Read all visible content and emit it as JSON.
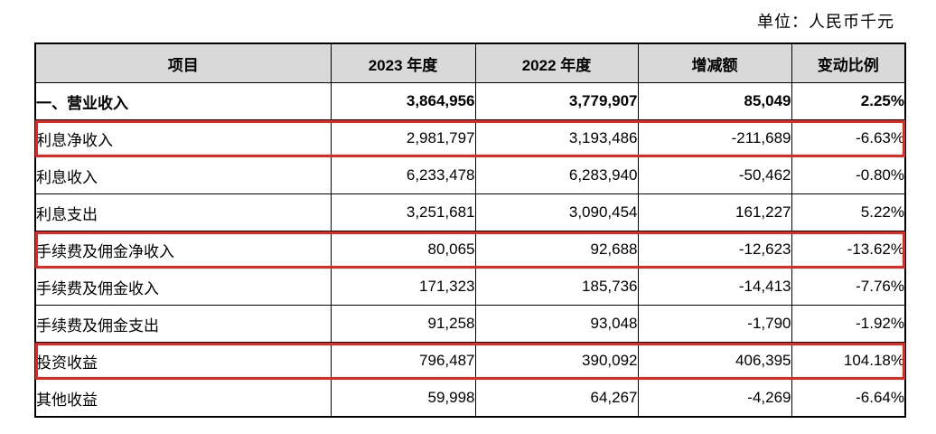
{
  "unit_label": "单位：人民币千元",
  "colors": {
    "header_bg": "#d9d9d9",
    "highlight_border": "#e8261d",
    "table_border": "#000000"
  },
  "table": {
    "headers": {
      "item": "项目",
      "y2023": "2023 年度",
      "y2022": "2022 年度",
      "change": "增减额",
      "pct": "变动比例"
    },
    "rows": [
      {
        "label": "一、营业收入",
        "v2023": "3,864,956",
        "v2022": "3,779,907",
        "change": "85,049",
        "pct": "2.25%",
        "bold": true,
        "indent": 0,
        "highlighted": false
      },
      {
        "label": "利息净收入",
        "v2023": "2,981,797",
        "v2022": "3,193,486",
        "change": "-211,689",
        "pct": "-6.63%",
        "bold": false,
        "indent": 1,
        "highlighted": true
      },
      {
        "label": "利息收入",
        "v2023": "6,233,478",
        "v2022": "6,283,940",
        "change": "-50,462",
        "pct": "-0.80%",
        "bold": false,
        "indent": 2,
        "highlighted": false
      },
      {
        "label": "利息支出",
        "v2023": "3,251,681",
        "v2022": "3,090,454",
        "change": "161,227",
        "pct": "5.22%",
        "bold": false,
        "indent": 2,
        "highlighted": false
      },
      {
        "label": "手续费及佣金净收入",
        "v2023": "80,065",
        "v2022": "92,688",
        "change": "-12,623",
        "pct": "-13.62%",
        "bold": false,
        "indent": 1,
        "highlighted": true
      },
      {
        "label": "手续费及佣金收入",
        "v2023": "171,323",
        "v2022": "185,736",
        "change": "-14,413",
        "pct": "-7.76%",
        "bold": false,
        "indent": 2,
        "highlighted": false
      },
      {
        "label": "手续费及佣金支出",
        "v2023": "91,258",
        "v2022": "93,048",
        "change": "-1,790",
        "pct": "-1.92%",
        "bold": false,
        "indent": 2,
        "highlighted": false
      },
      {
        "label": "投资收益",
        "v2023": "796,487",
        "v2022": "390,092",
        "change": "406,395",
        "pct": "104.18%",
        "bold": false,
        "indent": 1,
        "highlighted": true
      },
      {
        "label": "其他收益",
        "v2023": "59,998",
        "v2022": "64,267",
        "change": "-4,269",
        "pct": "-6.64%",
        "bold": false,
        "indent": 1,
        "highlighted": false
      }
    ]
  }
}
